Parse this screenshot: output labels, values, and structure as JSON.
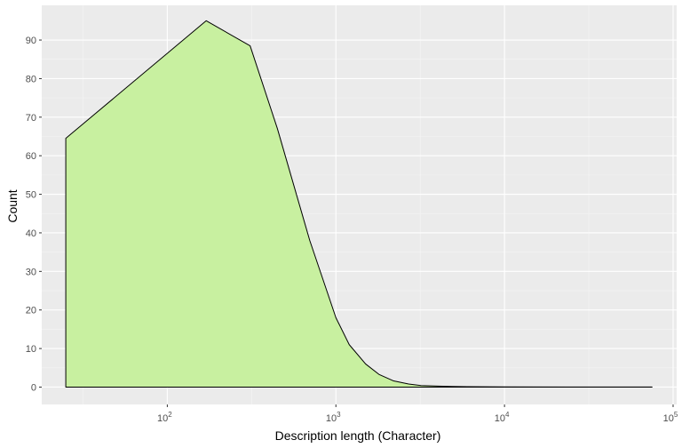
{
  "chart_data": {
    "type": "area",
    "xlabel": "Description length (Character)",
    "ylabel": "Count",
    "x_scale": "log10",
    "xlim": [
      18,
      105000
    ],
    "ylim": [
      -4.5,
      99
    ],
    "grid": true,
    "x_ticks": [
      {
        "value": 100,
        "base": "10",
        "exp": "2"
      },
      {
        "value": 1000,
        "base": "10",
        "exp": "3"
      },
      {
        "value": 10000,
        "base": "10",
        "exp": "4"
      },
      {
        "value": 100000,
        "base": "10",
        "exp": "5"
      }
    ],
    "y_ticks": [
      0,
      10,
      20,
      30,
      40,
      50,
      60,
      70,
      80,
      90
    ],
    "series": [
      {
        "x": [
          25,
          25,
          170,
          310,
          450,
          700,
          1000,
          1200,
          1500,
          1800,
          2200,
          2700,
          3200,
          4500,
          6000,
          10000,
          30000,
          75000,
          75000
        ],
        "y": [
          0,
          64.5,
          95,
          88.5,
          67,
          38,
          18,
          11,
          6,
          3.3,
          1.6,
          0.8,
          0.4,
          0.2,
          0.1,
          0.05,
          0.02,
          0.01,
          0
        ],
        "fill": "#c8f0a0",
        "line": "#000000"
      }
    ]
  },
  "colors": {
    "panel": "#ebebeb",
    "grid_major": "#ffffff",
    "grid_minor": "#f5f5f5",
    "tick_text": "#4d4d4d",
    "tick_mark": "#333333"
  }
}
